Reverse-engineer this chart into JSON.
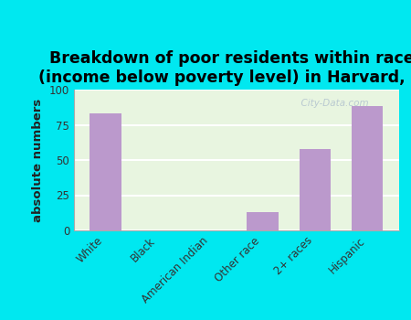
{
  "title": "Breakdown of poor residents within races\n(income below poverty level) in Harvard, NE",
  "categories": [
    "White",
    "Black",
    "American Indian",
    "Other race",
    "2+ races",
    "Hispanic"
  ],
  "values": [
    83,
    0,
    0,
    13,
    58,
    88
  ],
  "bar_color": "#bb99cc",
  "ylabel": "absolute numbers",
  "ylim": [
    0,
    100
  ],
  "yticks": [
    0,
    25,
    50,
    75,
    100
  ],
  "background_outer": "#00e8f0",
  "background_inner": "#e8f5e0",
  "title_fontsize": 12.5,
  "axis_label_fontsize": 9.5,
  "tick_fontsize": 8.5,
  "watermark": "  City-Data.com",
  "grid_color": "#ffffff"
}
